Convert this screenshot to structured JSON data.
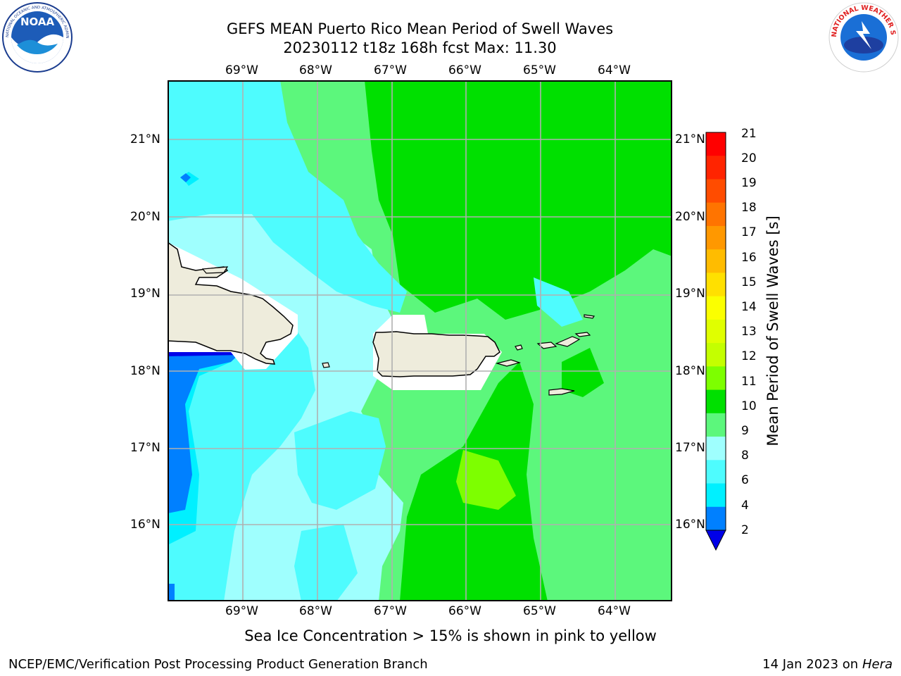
{
  "header": {
    "title_line1": "GEFS MEAN Puerto Rico Mean Period of Swell Waves",
    "title_line2": "20230112 t18z 168h fcst   Max: 11.30"
  },
  "logos": {
    "left": {
      "name": "noaa-logo",
      "text": "NOAA",
      "ring_text": "NATIONAL OCEANIC AND ATMOSPHERIC ADMINISTRATION · U.S. DEPARTMENT OF COMMERCE"
    },
    "right": {
      "name": "nws-logo",
      "ring_text": "NATIONAL WEATHER SERVICE"
    }
  },
  "map": {
    "lon_labels": [
      "69°W",
      "68°W",
      "67°W",
      "66°W",
      "65°W",
      "64°W"
    ],
    "lat_labels": [
      "21°N",
      "20°N",
      "19°N",
      "18°N",
      "17°N",
      "16°N"
    ],
    "colors": {
      "land": "#eeecdc",
      "grid": "#b0b0b0",
      "coast": "#000000"
    }
  },
  "colorbar": {
    "label": "Mean Period of Swell Waves [s]",
    "ticks": [
      "21",
      "20",
      "19",
      "18",
      "17",
      "16",
      "15",
      "14",
      "13",
      "12",
      "11",
      "10",
      "9",
      "8",
      "6",
      "4",
      "2"
    ],
    "colors_top_to_bottom": [
      "#ff0000",
      "#ff2400",
      "#ff4c00",
      "#ff7400",
      "#ff9800",
      "#ffbc00",
      "#ffe000",
      "#fbff00",
      "#e0ff00",
      "#c4ff00",
      "#7dff00",
      "#00e000",
      "#5cf77c",
      "#9ffffe",
      "#4efcfe",
      "#00f0ff",
      "#0080ff"
    ],
    "under_color": "#0000e8"
  },
  "field_colors": {
    "c2": "#0080ff",
    "c4": "#00f0ff",
    "c6": "#4efcfe",
    "c8": "#9ffffe",
    "c9": "#5cf77c",
    "c10": "#00e000",
    "c11": "#7dff00"
  },
  "caption": "Sea Ice Concentration > 15% is shown in pink to yellow",
  "footer": {
    "left": "NCEP/EMC/Verification Post Processing Product Generation Branch",
    "right_date": "14 Jan 2023 on ",
    "right_host": "Hera"
  }
}
